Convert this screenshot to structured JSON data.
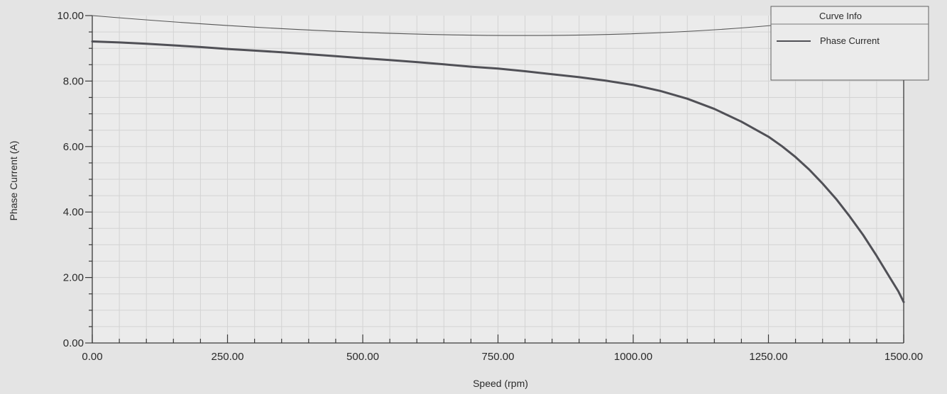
{
  "chart_data": {
    "type": "line",
    "xlabel": "Speed (rpm)",
    "ylabel": "Phase Current (A)",
    "xlim": [
      0,
      1500
    ],
    "ylim": [
      0,
      10
    ],
    "xticks": [
      "0.00",
      "250.00",
      "500.00",
      "750.00",
      "1000.00",
      "1250.00",
      "1500.00"
    ],
    "yticks": [
      "0.00",
      "2.00",
      "4.00",
      "6.00",
      "8.00",
      "10.00"
    ],
    "grid": true,
    "legend": {
      "title": "Curve Info",
      "position": "top-right"
    },
    "series": [
      {
        "name": "Phase Current",
        "color": "#505056",
        "x": [
          0,
          50,
          100,
          150,
          200,
          250,
          300,
          350,
          400,
          450,
          500,
          550,
          600,
          650,
          700,
          750,
          800,
          850,
          900,
          950,
          1000,
          1050,
          1100,
          1150,
          1200,
          1250,
          1275,
          1300,
          1325,
          1350,
          1375,
          1400,
          1425,
          1450,
          1475,
          1490,
          1500
        ],
        "y": [
          9.21,
          9.18,
          9.14,
          9.09,
          9.04,
          8.98,
          8.93,
          8.88,
          8.82,
          8.76,
          8.7,
          8.64,
          8.58,
          8.51,
          8.44,
          8.38,
          8.3,
          8.21,
          8.12,
          8.01,
          7.88,
          7.7,
          7.46,
          7.15,
          6.76,
          6.3,
          6.01,
          5.68,
          5.3,
          4.87,
          4.4,
          3.87,
          3.3,
          2.66,
          1.98,
          1.58,
          1.25
        ]
      }
    ]
  }
}
